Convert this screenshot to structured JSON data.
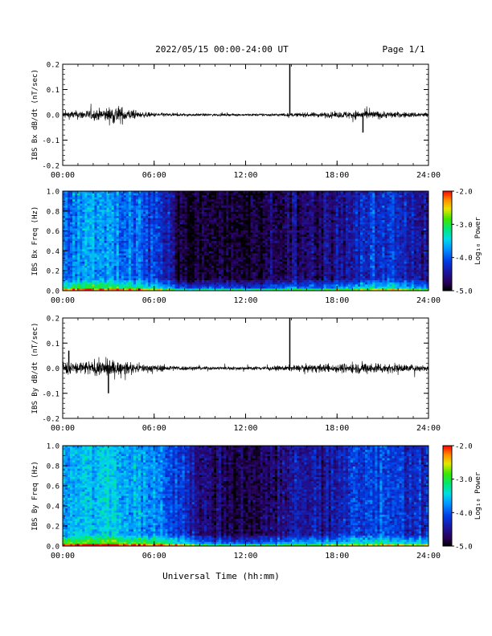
{
  "header": {
    "title": "2022/05/15  00:00-24:00 UT",
    "page": "Page 1/1"
  },
  "footer": {
    "xlabel": "Universal Time (hh:mm)"
  },
  "chart_data": [
    {
      "type": "line",
      "ylabel": "IBS Bx dB/dt (nT/sec)",
      "xticks": [
        "00:00",
        "06:00",
        "12:00",
        "18:00",
        "24:00"
      ],
      "xlim_hours": [
        0,
        24
      ],
      "ylim": [
        -0.2,
        0.2
      ],
      "yticks": [
        "0.2",
        "0.1",
        "0.0",
        "-0.1",
        "-0.2"
      ],
      "series": [
        {
          "x": [
            0,
            1,
            2,
            3,
            3.5,
            4,
            5,
            6,
            7,
            8,
            10,
            12,
            14,
            15,
            16,
            18,
            19,
            20,
            21,
            22,
            23,
            24
          ],
          "amplitude": [
            0.025,
            0.03,
            0.035,
            0.05,
            0.07,
            0.05,
            0.02,
            0.015,
            0.012,
            0.01,
            0.008,
            0.008,
            0.01,
            0.012,
            0.015,
            0.02,
            0.03,
            0.03,
            0.025,
            0.02,
            0.018,
            0.018
          ],
          "spikes": [
            {
              "x": 14.9,
              "y": 0.2
            },
            {
              "x": 19.7,
              "y": -0.07
            }
          ]
        }
      ]
    },
    {
      "type": "heatmap",
      "ylabel": "IBS Bx Freq (Hz)",
      "xticks": [
        "00:00",
        "06:00",
        "12:00",
        "18:00",
        "24:00"
      ],
      "ylim": [
        0,
        1
      ],
      "yticks": [
        "1.0",
        "0.8",
        "0.6",
        "0.4",
        "0.2",
        "0.0"
      ],
      "colorbar": {
        "label": "Log₁₀ Power",
        "range": [
          -5,
          -2
        ],
        "ticks": [
          "-2.0",
          "-3.0",
          "-4.0",
          "-5.0"
        ]
      },
      "levels_by_hour": {
        "x": [
          0,
          2,
          4,
          6,
          7,
          7.5,
          9,
          12,
          14,
          15,
          16,
          18,
          20,
          21,
          22,
          23,
          24
        ],
        "log_power": [
          -3.9,
          -3.7,
          -3.8,
          -4.1,
          -4.3,
          -4.8,
          -4.9,
          -4.9,
          -4.8,
          -4.6,
          -4.7,
          -4.5,
          -4.3,
          -4.2,
          -4.2,
          -4.4,
          -4.4
        ]
      }
    },
    {
      "type": "line",
      "ylabel": "IBS By dB/dt (nT/sec)",
      "xticks": [
        "00:00",
        "06:00",
        "12:00",
        "18:00",
        "24:00"
      ],
      "xlim_hours": [
        0,
        24
      ],
      "ylim": [
        -0.2,
        0.2
      ],
      "yticks": [
        "0.2",
        "0.1",
        "0.0",
        "-0.1",
        "-0.2"
      ],
      "series": [
        {
          "x": [
            0,
            1,
            2,
            3,
            3.5,
            4,
            5,
            6,
            7,
            8,
            10,
            12,
            14,
            15,
            16,
            18,
            19,
            20,
            21,
            22,
            23,
            24
          ],
          "amplitude": [
            0.04,
            0.05,
            0.05,
            0.06,
            0.05,
            0.04,
            0.03,
            0.025,
            0.02,
            0.015,
            0.012,
            0.012,
            0.015,
            0.02,
            0.025,
            0.03,
            0.035,
            0.04,
            0.035,
            0.03,
            0.025,
            0.022
          ],
          "spikes": [
            {
              "x": 14.9,
              "y": 0.2
            },
            {
              "x": 0.4,
              "y": 0.07
            },
            {
              "x": 3.0,
              "y": -0.1
            }
          ]
        }
      ]
    },
    {
      "type": "heatmap",
      "ylabel": "IBS By Freq (Hz)",
      "xticks": [
        "00:00",
        "06:00",
        "12:00",
        "18:00",
        "24:00"
      ],
      "ylim": [
        0,
        1
      ],
      "yticks": [
        "1.0",
        "0.8",
        "0.6",
        "0.4",
        "0.2",
        "0.0"
      ],
      "colorbar": {
        "label": "Log₁₀ Power",
        "range": [
          -5,
          -2
        ],
        "ticks": [
          "-2.0",
          "-3.0",
          "-4.0",
          "-5.0"
        ]
      },
      "levels_by_hour": {
        "x": [
          0,
          2,
          3,
          4,
          6,
          7,
          8,
          9,
          12,
          14,
          15,
          16,
          18,
          20,
          21,
          22,
          23,
          24
        ],
        "log_power": [
          -3.7,
          -3.5,
          -3.4,
          -3.6,
          -3.8,
          -4.0,
          -4.2,
          -4.6,
          -4.8,
          -4.7,
          -4.4,
          -4.5,
          -4.3,
          -4.1,
          -4.0,
          -4.1,
          -4.3,
          -4.3
        ]
      }
    }
  ]
}
